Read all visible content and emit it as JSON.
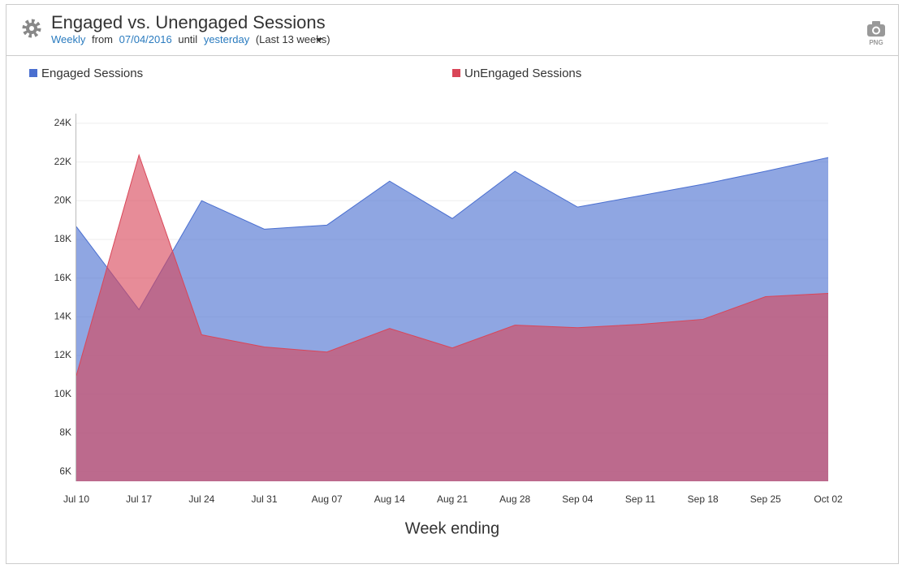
{
  "header": {
    "title": "Engaged vs. Unengaged Sessions",
    "subtitle": [
      "Weekly",
      "from",
      "07/04/2016",
      "until",
      "yesterday",
      "(Last 13 weeks)"
    ],
    "png_button": "PNG"
  },
  "chart_data": {
    "type": "area",
    "x_label": "Week ending",
    "categories": [
      "Jul 10",
      "Jul 17",
      "Jul 24",
      "Jul 31",
      "Aug 07",
      "Aug 14",
      "Aug 21",
      "Aug 28",
      "Sep 04",
      "Sep 11",
      "Sep 18",
      "Sep 25",
      "Oct 02"
    ],
    "series": [
      {
        "name": "Engaged Sessions",
        "color": "#4a6fd0",
        "values": [
          18660,
          14370,
          20000,
          18530,
          18740,
          21010,
          19080,
          21520,
          19670,
          20260,
          20850,
          21520,
          22230
        ]
      },
      {
        "name": "UnEngaged Sessions",
        "color": "#d94658",
        "values": [
          10960,
          22360,
          13070,
          12440,
          12180,
          13400,
          12390,
          13570,
          13440,
          13610,
          13870,
          15040,
          15210
        ]
      }
    ],
    "ylim": [
      5500,
      24500
    ],
    "yticks": [
      {
        "value": 6000,
        "label": "6K"
      },
      {
        "value": 8000,
        "label": "8K"
      },
      {
        "value": 10000,
        "label": "10K"
      },
      {
        "value": 12000,
        "label": "12K"
      },
      {
        "value": 14000,
        "label": "14K"
      },
      {
        "value": 16000,
        "label": "16K"
      },
      {
        "value": 18000,
        "label": "18K"
      },
      {
        "value": 20000,
        "label": "20K"
      },
      {
        "value": 22000,
        "label": "22K"
      },
      {
        "value": 24000,
        "label": "24K"
      }
    ],
    "grid": true
  }
}
